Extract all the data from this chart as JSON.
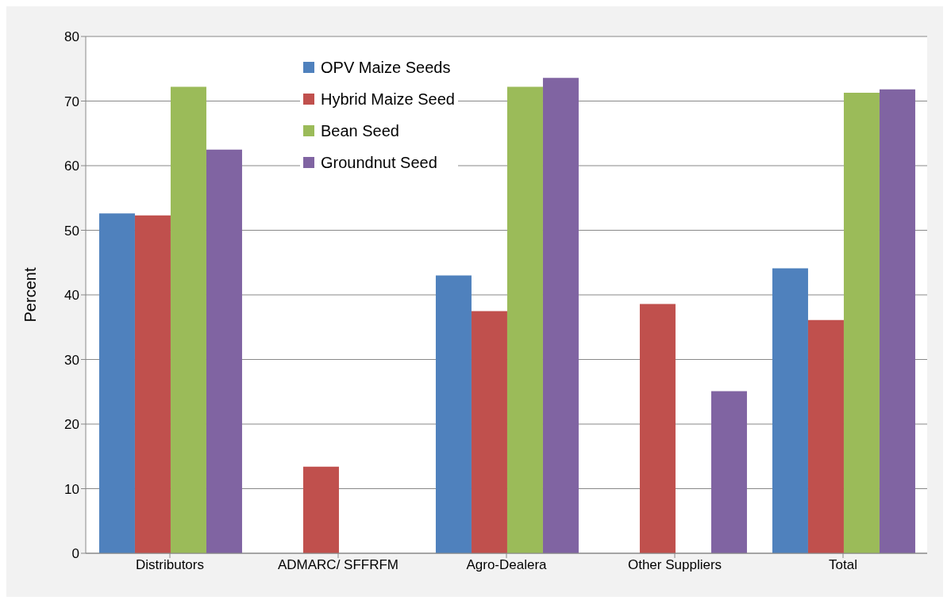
{
  "chart_data": {
    "type": "bar",
    "ylabel": "Percent",
    "categories": [
      "Distributors",
      "ADMARC/ SFFRFM",
      "Agro-Dealera",
      "Other Suppliers",
      "Total"
    ],
    "series": [
      {
        "name": "OPV Maize Seeds",
        "color": "#4f81bd",
        "values": [
          52.6,
          0,
          43.0,
          0,
          44.1
        ]
      },
      {
        "name": "Hybrid Maize Seed",
        "color": "#c0504d",
        "values": [
          52.3,
          13.4,
          37.5,
          38.6,
          36.1
        ]
      },
      {
        "name": "Bean Seed",
        "color": "#9bbb59",
        "values": [
          72.2,
          0,
          72.2,
          0,
          71.3
        ]
      },
      {
        "name": "Groundnut Seed",
        "color": "#8064a2",
        "values": [
          62.5,
          0,
          73.6,
          25.1,
          71.8
        ]
      }
    ],
    "ylim": [
      0,
      80
    ],
    "yticks": [
      0,
      10,
      20,
      30,
      40,
      50,
      60,
      70,
      80
    ],
    "grid": "y",
    "legend": "top"
  }
}
